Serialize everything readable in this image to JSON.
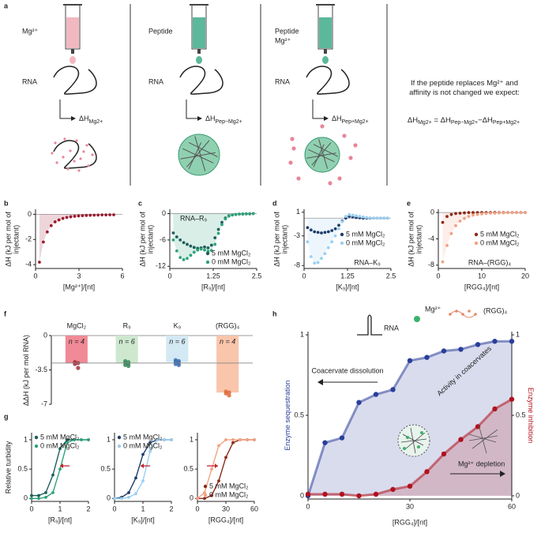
{
  "panel_a": {
    "label": "a",
    "columns": [
      {
        "reagent": [
          "Mg²⁺"
        ],
        "substrate": "RNA",
        "enthalpy": [
          "ΔH",
          "Mg2+"
        ]
      },
      {
        "reagent": [
          "Peptide"
        ],
        "substrate": "RNA",
        "enthalpy": [
          "ΔH",
          "Pep−Mg2+"
        ]
      },
      {
        "reagent": [
          "Peptide",
          "Mg²⁺"
        ],
        "substrate": "RNA",
        "enthalpy": [
          "ΔH",
          "Pep+Mg2+"
        ]
      }
    ],
    "hypothesis": "If the peptide replaces Mg²⁺ and affinity is not changed we expect:",
    "equation": [
      "ΔH",
      "Mg2+",
      " = ΔH",
      "Pep−Mg2+",
      "−ΔH",
      "Pep+Mg2+"
    ]
  },
  "chart_data": [
    {
      "type": "scatter",
      "panel": "b",
      "xlabel": "[Mg²⁺]/[nt]",
      "ylabel": "ΔH (kJ per mol of injectant)",
      "xlim": [
        0,
        6
      ],
      "xticks": [
        0,
        3,
        6
      ],
      "ylim": [
        -4.3,
        0.4
      ],
      "yticks": [
        0,
        -2,
        -4
      ],
      "zero_line": true,
      "area": [
        0
      ],
      "x": [
        0.27,
        0.54,
        0.81,
        1.08,
        1.35,
        1.62,
        1.89,
        2.16,
        2.43,
        2.7,
        2.97,
        3.24,
        3.51,
        3.78,
        4.05,
        4.32,
        4.59,
        4.86,
        5.13,
        5.4
      ],
      "series": [
        {
          "color": "#9b1b30",
          "values": [
            -3.8,
            -2.2,
            -1.4,
            -0.9,
            -0.6,
            -0.45,
            -0.33,
            -0.25,
            -0.2,
            -0.16,
            -0.13,
            -0.11,
            -0.09,
            -0.08,
            -0.07,
            -0.06,
            -0.05,
            -0.05,
            -0.04,
            -0.04
          ]
        }
      ]
    },
    {
      "type": "scatter",
      "panel": "c",
      "xlabel": "[R₉]/[nt]",
      "ylabel": "ΔH (kJ per mol of injectant)",
      "annotation": "RNA–R₉",
      "xlim": [
        0,
        2.5
      ],
      "xticks": [
        0,
        1.25,
        2.5
      ],
      "ylim": [
        -12.5,
        1
      ],
      "yticks": [
        0,
        -6,
        -12
      ],
      "zero_line": true,
      "area": [
        1
      ],
      "legend": "lower right",
      "x": [
        0.1,
        0.2,
        0.3,
        0.4,
        0.5,
        0.6,
        0.7,
        0.8,
        0.9,
        1.0,
        1.1,
        1.2,
        1.3,
        1.4,
        1.5,
        1.6,
        1.7,
        1.8,
        1.9,
        2.0,
        2.1,
        2.2,
        2.3,
        2.4
      ],
      "series": [
        {
          "name": "5 mM MgCl₂",
          "color": "#1d5e5a",
          "values": [
            -4.4,
            -5.3,
            -6,
            -6.6,
            -7,
            -7.4,
            -7.7,
            -7.9,
            -7.8,
            -7.6,
            -7.8,
            -7.2,
            -5.5,
            -3.6,
            -2,
            -1,
            -0.5,
            -0.3,
            -0.2,
            -0.1,
            -0.1,
            -0.05,
            -0.05,
            0
          ]
        },
        {
          "name": "0 mM MgCl₂",
          "color": "#2fa27a",
          "values": [
            -6,
            -8.5,
            -10,
            -10.5,
            -10.2,
            -9.5,
            -8.8,
            -8.3,
            -8.1,
            -8.3,
            -8.6,
            -8.4,
            -7,
            -4.5,
            -2.5,
            -1.2,
            -0.6,
            -0.3,
            -0.2,
            -0.1,
            -0.05,
            -0.05,
            0,
            0
          ]
        }
      ]
    },
    {
      "type": "scatter",
      "panel": "d",
      "xlabel": "[K₉]/[nt]",
      "ylabel": "ΔH (kJ per mol of injectant)",
      "annotation": "RNA–K₉",
      "xlim": [
        0,
        2.5
      ],
      "xticks": [
        0,
        1.25,
        2.5
      ],
      "ylim": [
        -8.5,
        1.5
      ],
      "yticks": [
        1,
        -3,
        -8
      ],
      "zero_line": true,
      "area": [
        1
      ],
      "legend": "center right",
      "x": [
        0.1,
        0.2,
        0.3,
        0.4,
        0.5,
        0.6,
        0.7,
        0.8,
        0.9,
        1.0,
        1.1,
        1.2,
        1.3,
        1.4,
        1.5,
        1.6,
        1.7,
        1.8,
        1.9,
        2.0,
        2.1,
        2.2,
        2.3,
        2.4
      ],
      "series": [
        {
          "name": "5 mM MgCl₂",
          "color": "#1f3d6b",
          "values": [
            -1.6,
            -2,
            -2.3,
            -2.4,
            -2.5,
            -2.4,
            -2.3,
            -2.1,
            -1.8,
            -1.2,
            -0.5,
            0,
            0.3,
            0.2,
            0.1,
            0.05,
            0,
            0,
            0,
            0,
            0,
            0,
            0,
            0
          ]
        },
        {
          "name": "0 mM MgCl₂",
          "color": "#9bcff0",
          "values": [
            -4,
            -6.5,
            -7.6,
            -7.5,
            -6.8,
            -6,
            -5,
            -4,
            -3,
            -1.8,
            -0.6,
            0.3,
            0.6,
            0.5,
            0.4,
            0.3,
            0.2,
            0.1,
            0.05,
            0,
            0,
            0,
            0,
            0
          ]
        }
      ]
    },
    {
      "type": "scatter",
      "panel": "e",
      "xlabel": "[RGG₄]/[nt]",
      "ylabel": "ΔH (kJ per mol of injectant)",
      "annotation": "RNA–(RGG)₄",
      "xlim": [
        0,
        20
      ],
      "xticks": [
        0,
        10,
        20
      ],
      "ylim": [
        -8.5,
        0.5
      ],
      "yticks": [
        0,
        -4,
        -8
      ],
      "zero_line": true,
      "area": [
        1
      ],
      "legend": "center right",
      "x": [
        1,
        2,
        3,
        4,
        5,
        6,
        7,
        8,
        9,
        10,
        11,
        12,
        13,
        14,
        15,
        16,
        17,
        18,
        19,
        20
      ],
      "series": [
        {
          "name": "5 mM MgCl₂",
          "color": "#8b2a1a",
          "values": [
            -1.5,
            -0.6,
            -0.3,
            -0.15,
            -0.1,
            -0.05,
            0,
            0,
            0,
            0,
            0,
            0,
            0,
            0,
            0,
            0,
            0,
            0,
            0,
            0
          ]
        },
        {
          "name": "0 mM MgCl₂",
          "color": "#f2a283",
          "values": [
            -7.5,
            -5,
            -3.2,
            -2,
            -1.3,
            -0.9,
            -0.6,
            -0.4,
            -0.3,
            -0.2,
            -0.15,
            -0.1,
            -0.1,
            -0.05,
            -0.05,
            0,
            0,
            0,
            0,
            0
          ]
        }
      ]
    },
    {
      "type": "bar",
      "panel": "f",
      "ylabel": "ΔΔH (kJ per mol RNA)",
      "categories": [
        "MgCl₂",
        "R₉",
        "K₉",
        "(RGG)₄"
      ],
      "values": [
        -2.8,
        -2.8,
        -2.7,
        -5.8
      ],
      "colors": [
        "#f08a96",
        "#cde8cf",
        "#d3e9f4",
        "#f9c5ab"
      ],
      "point_colors": [
        "#a0303c",
        "#3a8a5a",
        "#3a6cb0",
        "#e06a3a"
      ],
      "annotations": [
        "n = 4",
        "n = 6",
        "n = 6",
        "n = 4"
      ],
      "replicates": [
        [
          -2.7,
          -2.8,
          -2.9,
          -3.3
        ],
        [
          -2.6,
          -2.7,
          -2.8,
          -2.9,
          -3.0,
          -3.1
        ],
        [
          -2.5,
          -2.6,
          -2.7,
          -2.8,
          -2.9,
          -3.0
        ],
        [
          -5.7,
          -5.8,
          -5.9,
          -6.1
        ]
      ],
      "ylim": [
        -7,
        0
      ],
      "yticks": [
        0,
        -3.5,
        -7
      ]
    },
    {
      "type": "line",
      "panel": "g",
      "ylabel": "Relative turbidity",
      "xlabel": "[R₉]/[nt]",
      "xlim": [
        0,
        2
      ],
      "xticks": [
        0,
        1,
        2
      ],
      "ylim": [
        -0.05,
        1.12
      ],
      "yticks": [
        0,
        0.5,
        1
      ],
      "legend": "upper left",
      "x": [
        0,
        0.25,
        0.5,
        0.75,
        1,
        1.25,
        1.5,
        1.75,
        2
      ],
      "series": [
        {
          "name": "5 mM MgCl₂",
          "color": "#1d5e5a",
          "values": [
            0.05,
            0.05,
            0.1,
            0.4,
            0.85,
            1,
            1,
            1,
            1
          ]
        },
        {
          "name": "0 mM MgCl₂",
          "color": "#2fa27a",
          "values": [
            0,
            0,
            0.02,
            0.1,
            0.5,
            0.95,
            1,
            1,
            1
          ]
        }
      ]
    },
    {
      "type": "line",
      "xlabel": "[K₉]/[nt]",
      "xlim": [
        0,
        2
      ],
      "xticks": [
        0,
        1,
        2
      ],
      "ylim": [
        -0.05,
        1.12
      ],
      "yticks": [
        0,
        0.5,
        1
      ],
      "legend": "upper left",
      "x": [
        0,
        0.25,
        0.5,
        0.75,
        1,
        1.25,
        1.5,
        1.75,
        2
      ],
      "series": [
        {
          "name": "5 mM MgCl₂",
          "color": "#1f3d6b",
          "values": [
            0,
            0.02,
            0.1,
            0.35,
            0.75,
            0.95,
            1,
            1,
            1
          ]
        },
        {
          "name": "0 mM MgCl₂",
          "color": "#9bcff0",
          "values": [
            0,
            0,
            0.02,
            0.08,
            0.3,
            0.8,
            1,
            1,
            1
          ]
        }
      ]
    },
    {
      "type": "line",
      "xlabel": "[RGG₄]/[nt]",
      "xlim": [
        0,
        60
      ],
      "xticks": [
        0,
        30,
        60
      ],
      "ylim": [
        -0.05,
        1.12
      ],
      "yticks": [
        0,
        0.5,
        1
      ],
      "legend": "lower right",
      "x": [
        0,
        7.5,
        15,
        22.5,
        30,
        37.5,
        45,
        52.5,
        60
      ],
      "series": [
        {
          "name": "5 mM MgCl₂",
          "color": "#8b2a1a",
          "values": [
            0,
            0,
            0.05,
            0.3,
            0.7,
            0.95,
            1,
            1,
            1
          ]
        },
        {
          "name": "0 mM MgCl₂",
          "color": "#f2a283",
          "values": [
            0,
            0.1,
            0.5,
            0.9,
            1,
            1,
            1,
            1,
            1
          ]
        }
      ]
    },
    {
      "type": "line",
      "panel": "h",
      "xlabel": "[RGG₄]/[nt]",
      "ylabel": "Enzyme sequestration",
      "y2label": "Enzyme inhibition",
      "xlim": [
        0,
        60
      ],
      "xticks": [
        0,
        30,
        60
      ],
      "ylim": [
        -0.02,
        1.02
      ],
      "yticks": [
        0,
        0.5,
        1
      ],
      "y2lim": [
        -0.02,
        1.02
      ],
      "y2ticks": [
        0,
        0.5,
        1
      ],
      "area": [
        0,
        1
      ],
      "annotations": [
        "RNA",
        "Mg²⁺",
        "(RGG)₄",
        "Coacervate dissolution",
        "Activity in coacervates",
        "Mg²⁺ depletion"
      ],
      "x": [
        0,
        5,
        10,
        15,
        20,
        25,
        30,
        35,
        40,
        45,
        50,
        55,
        60
      ],
      "series": [
        {
          "color": "#2a3f9a",
          "values": [
            0,
            0.33,
            0.36,
            0.58,
            0.63,
            0.66,
            0.84,
            0.86,
            0.9,
            0.91,
            0.94,
            0.96,
            0.96
          ]
        },
        {
          "color": "#b0121e",
          "axis": "y2",
          "values": [
            0.01,
            0.01,
            0.01,
            0,
            0.01,
            0.04,
            0.06,
            0.15,
            0.26,
            0.35,
            0.43,
            0.54,
            0.6
          ]
        }
      ]
    }
  ]
}
